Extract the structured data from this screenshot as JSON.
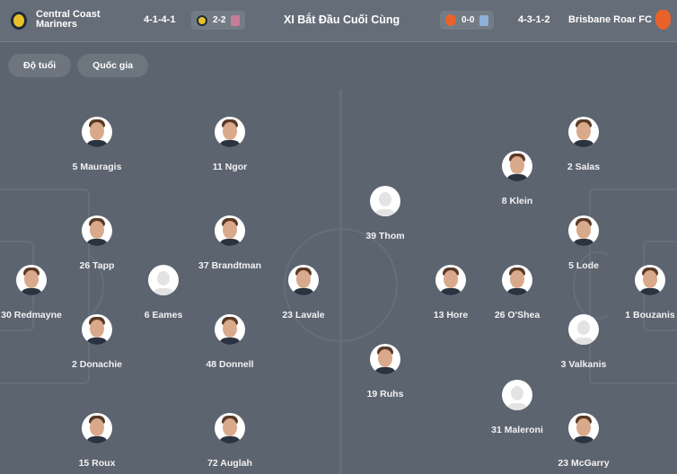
{
  "header": {
    "home": {
      "name_line1": "Central Coast",
      "name_line2": "Mariners",
      "formation": "4-1-4-1",
      "last_score": "2-2",
      "crest_color": "#e8c12a"
    },
    "title": "XI Bắt Đầu Cuối Cùng",
    "away": {
      "name": "Brisbane Roar FC",
      "formation": "4-3-1-2",
      "last_score": "0-0",
      "crest_color": "#e8622a"
    }
  },
  "filters": [
    {
      "label": "Độ tuổi"
    },
    {
      "label": "Quốc gia"
    }
  ],
  "home_players": [
    {
      "label": "5 Mauragis",
      "photo": true
    },
    {
      "label": "11 Ngor",
      "photo": true
    },
    {
      "label": "26 Tapp",
      "photo": true
    },
    {
      "label": "37 Brandtman",
      "photo": true
    },
    {
      "label": "30 Redmayne",
      "photo": true
    },
    {
      "label": "6 Eames",
      "photo": false
    },
    {
      "label": "23 Lavale",
      "photo": true
    },
    {
      "label": "2 Donachie",
      "photo": true
    },
    {
      "label": "48 Donnell",
      "photo": true
    },
    {
      "label": "15 Roux",
      "photo": true
    },
    {
      "label": "72 Auglah",
      "photo": true
    }
  ],
  "away_players": [
    {
      "label": "2 Salas",
      "photo": true
    },
    {
      "label": "8 Klein",
      "photo": true
    },
    {
      "label": "39 Thom",
      "photo": false
    },
    {
      "label": "5 Lode",
      "photo": true
    },
    {
      "label": "1 Bouzanis",
      "photo": true
    },
    {
      "label": "13 Hore",
      "photo": true
    },
    {
      "label": "26 O'Shea",
      "photo": true
    },
    {
      "label": "3 Valkanis",
      "photo": false
    },
    {
      "label": "19 Ruhs",
      "photo": true
    },
    {
      "label": "31 Maleroni",
      "photo": false
    },
    {
      "label": "23 McGarry",
      "photo": true
    }
  ]
}
